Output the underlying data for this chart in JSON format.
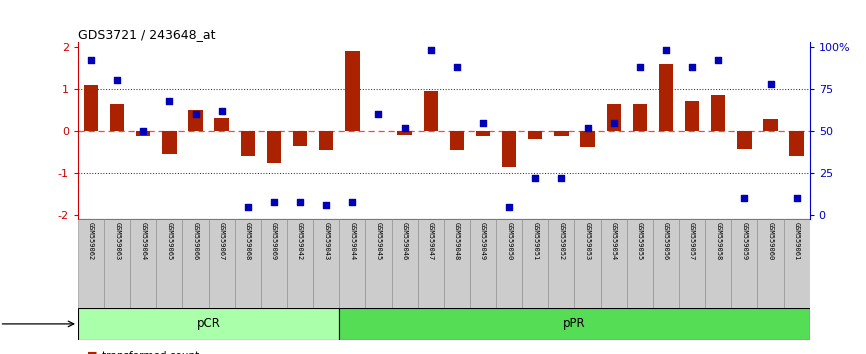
{
  "title": "GDS3721 / 243648_at",
  "samples": [
    "GSM559062",
    "GSM559063",
    "GSM559064",
    "GSM559065",
    "GSM559066",
    "GSM559067",
    "GSM559068",
    "GSM559069",
    "GSM559042",
    "GSM559043",
    "GSM559044",
    "GSM559045",
    "GSM559046",
    "GSM559047",
    "GSM559048",
    "GSM559049",
    "GSM559050",
    "GSM559051",
    "GSM559052",
    "GSM559053",
    "GSM559054",
    "GSM559055",
    "GSM559056",
    "GSM559057",
    "GSM559058",
    "GSM559059",
    "GSM559060",
    "GSM559061"
  ],
  "bar_values": [
    1.1,
    0.65,
    -0.12,
    -0.55,
    0.5,
    0.3,
    -0.6,
    -0.75,
    -0.35,
    -0.45,
    1.9,
    0.0,
    -0.1,
    0.95,
    -0.45,
    -0.12,
    -0.85,
    -0.2,
    -0.12,
    -0.38,
    0.65,
    0.65,
    1.6,
    0.7,
    0.85,
    -0.42,
    0.28,
    -0.6
  ],
  "percentile_values": [
    92,
    80,
    50,
    68,
    60,
    62,
    5,
    8,
    8,
    6,
    8,
    60,
    52,
    98,
    88,
    55,
    5,
    22,
    22,
    52,
    55,
    88,
    98,
    88,
    92,
    10,
    78,
    10
  ],
  "pcr_count": 10,
  "ppr_count": 18,
  "bar_color": "#AA2200",
  "scatter_color": "#0000BB",
  "bar_width": 0.55,
  "ylim_min": -2.1,
  "ylim_max": 2.1,
  "yticks_left": [
    -2,
    -1,
    0,
    1,
    2
  ],
  "yticks_right_pct": [
    0,
    25,
    50,
    75,
    100
  ],
  "yticks_right_labels": [
    "0",
    "25",
    "50",
    "75",
    "100%"
  ],
  "pcr_color": "#AAFFAA",
  "ppr_color": "#55DD55",
  "zero_line_color": "#FF4444",
  "dot_line_color": "#333333",
  "sample_box_color": "#CCCCCC",
  "bg_color": "#FFFFFF",
  "left_axis_color": "#CC0000",
  "right_axis_color": "#0000CC"
}
